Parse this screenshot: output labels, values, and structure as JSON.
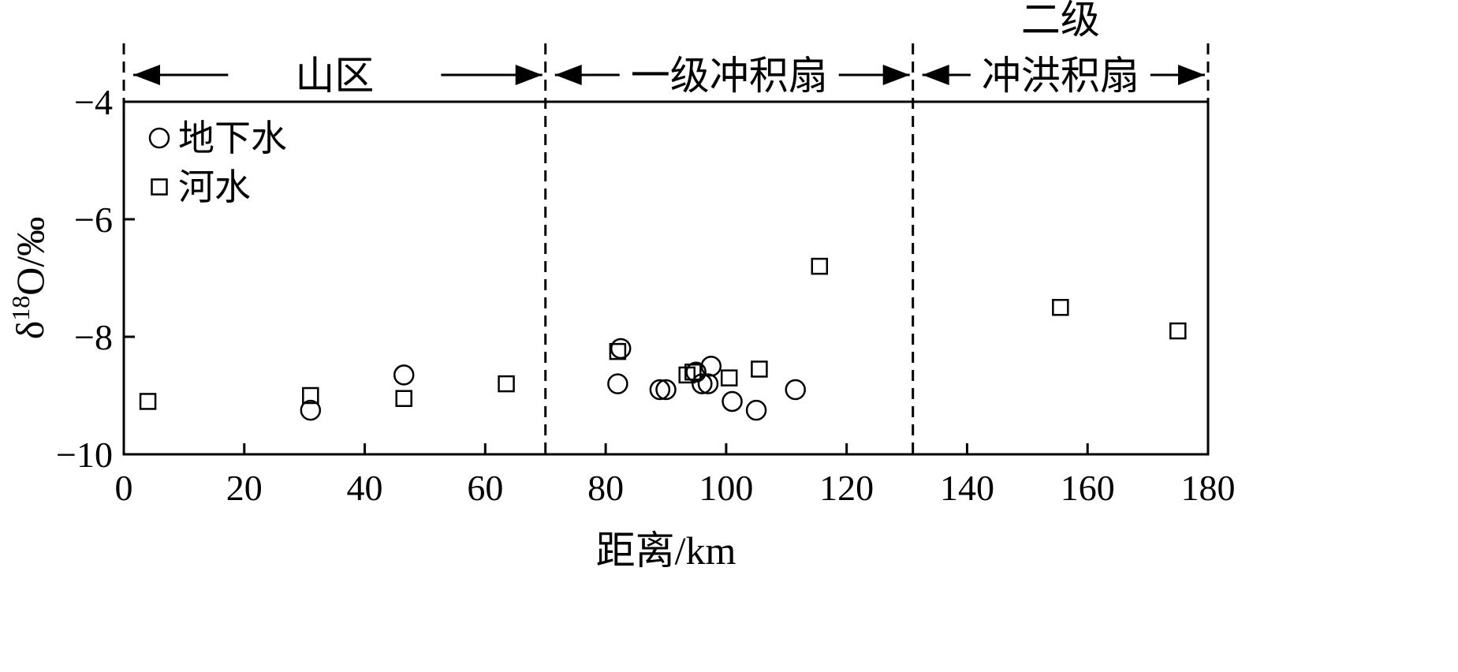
{
  "chart_data": {
    "type": "scatter",
    "xlabel": "距离/km",
    "ylabel_parts": {
      "delta": "δ",
      "sup": "18",
      "rest": "O/‰"
    },
    "xlim": [
      0,
      180
    ],
    "ylim": [
      -10,
      -4
    ],
    "xticks": [
      0,
      20,
      40,
      60,
      80,
      100,
      120,
      140,
      160,
      180
    ],
    "yticks": [
      -4,
      -6,
      -8,
      -10
    ],
    "ytick_labels": [
      "−4",
      "−6",
      "−8",
      "−10"
    ],
    "grid": false,
    "legend_position": "top-left",
    "zone_boundaries": [
      70,
      131
    ],
    "zones": [
      {
        "lines": [
          "山区"
        ],
        "from": 0,
        "to": 70
      },
      {
        "lines": [
          "一级冲积扇"
        ],
        "from": 70,
        "to": 131
      },
      {
        "lines": [
          "二级",
          "冲洪积扇"
        ],
        "from": 131,
        "to": 180
      }
    ],
    "series": [
      {
        "name": "地下水",
        "marker": "circle",
        "points": [
          [
            31,
            -9.25
          ],
          [
            46.5,
            -8.65
          ],
          [
            82,
            -8.8
          ],
          [
            82.5,
            -8.2
          ],
          [
            89,
            -8.9
          ],
          [
            90,
            -8.9
          ],
          [
            95,
            -8.6
          ],
          [
            96,
            -8.8
          ],
          [
            97,
            -8.8
          ],
          [
            97.5,
            -8.5
          ],
          [
            101,
            -9.1
          ],
          [
            105,
            -9.25
          ],
          [
            111.5,
            -8.9
          ]
        ]
      },
      {
        "name": "河水",
        "marker": "square",
        "points": [
          [
            4,
            -9.1
          ],
          [
            31,
            -9.0
          ],
          [
            46.5,
            -9.05
          ],
          [
            63.5,
            -8.8
          ],
          [
            82,
            -8.25
          ],
          [
            93.5,
            -8.65
          ],
          [
            94.5,
            -8.6
          ],
          [
            100.5,
            -8.7
          ],
          [
            105.5,
            -8.55
          ],
          [
            115.5,
            -6.8
          ],
          [
            155.5,
            -7.5
          ],
          [
            175,
            -7.9
          ]
        ]
      }
    ]
  }
}
